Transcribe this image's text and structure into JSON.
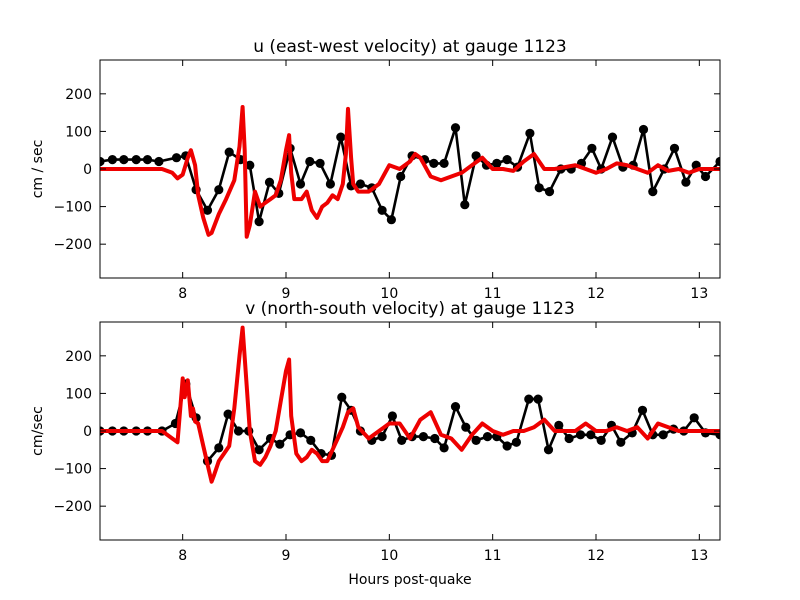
{
  "chart_data": [
    {
      "type": "line",
      "title": "u (east-west velocity) at gauge 1123",
      "xlabel": "",
      "ylabel": "cm / sec",
      "xlim": [
        7.2,
        13.2
      ],
      "ylim": [
        -290,
        290
      ],
      "xticks": [
        8,
        9,
        10,
        11,
        12,
        13
      ],
      "xtick_labels": [
        "8",
        "9",
        "10",
        "11",
        "12",
        "13"
      ],
      "yticks": [
        200,
        100,
        0,
        -100,
        -200
      ],
      "ytick_labels": [
        "200",
        "100",
        "0",
        "−100",
        "−200"
      ],
      "grid": false,
      "colors": {
        "observed": "#000000",
        "model": "#ee0000"
      },
      "series": [
        {
          "style": "black line with circle markers",
          "x": [
            7.2,
            7.32,
            7.43,
            7.55,
            7.66,
            7.77,
            7.94,
            8.03,
            8.13,
            8.24,
            8.35,
            8.45,
            8.56,
            8.65,
            8.74,
            8.84,
            8.93,
            9.04,
            9.14,
            9.23,
            9.33,
            9.43,
            9.53,
            9.63,
            9.72,
            9.83,
            9.93,
            10.02,
            10.11,
            10.22,
            10.34,
            10.43,
            10.53,
            10.64,
            10.73,
            10.84,
            10.94,
            11.04,
            11.14,
            11.24,
            11.36,
            11.45,
            11.55,
            11.66,
            11.76,
            11.86,
            11.96,
            12.05,
            12.16,
            12.26,
            12.36,
            12.46,
            12.55,
            12.66,
            12.76,
            12.87,
            12.97,
            13.06,
            13.2
          ],
          "y": [
            20,
            25,
            25,
            25,
            25,
            20,
            30,
            35,
            -55,
            -110,
            -55,
            45,
            25,
            10,
            -140,
            -35,
            -65,
            55,
            -40,
            20,
            15,
            -40,
            85,
            -45,
            -40,
            -50,
            -110,
            -135,
            -20,
            35,
            25,
            15,
            15,
            110,
            -95,
            35,
            10,
            15,
            25,
            5,
            95,
            -50,
            -60,
            0,
            0,
            15,
            55,
            0,
            85,
            5,
            10,
            105,
            -60,
            0,
            55,
            -35,
            10,
            -20,
            20
          ]
        },
        {
          "style": "thick red line",
          "x": [
            7.2,
            7.8,
            7.9,
            7.95,
            8.0,
            8.05,
            8.08,
            8.12,
            8.15,
            8.2,
            8.25,
            8.28,
            8.35,
            8.42,
            8.5,
            8.55,
            8.58,
            8.6,
            8.62,
            8.65,
            8.7,
            8.75,
            8.8,
            8.85,
            8.9,
            8.95,
            9.0,
            9.03,
            9.05,
            9.08,
            9.15,
            9.2,
            9.25,
            9.3,
            9.35,
            9.4,
            9.45,
            9.5,
            9.55,
            9.58,
            9.6,
            9.63,
            9.65,
            9.7,
            9.75,
            9.8,
            9.9,
            10.0,
            10.1,
            10.2,
            10.25,
            10.3,
            10.4,
            10.5,
            10.6,
            10.7,
            10.8,
            10.9,
            11.0,
            11.1,
            11.2,
            11.3,
            11.4,
            11.5,
            11.6,
            11.7,
            11.8,
            11.9,
            12.0,
            12.1,
            12.2,
            12.3,
            12.4,
            12.5,
            12.6,
            12.7,
            12.8,
            12.9,
            13.0,
            13.2
          ],
          "y": [
            0,
            0,
            -10,
            -25,
            -15,
            30,
            50,
            10,
            -70,
            -130,
            -175,
            -170,
            -120,
            -80,
            -30,
            60,
            165,
            50,
            -180,
            -150,
            -60,
            -100,
            -90,
            -80,
            -70,
            -30,
            50,
            90,
            -10,
            -80,
            -80,
            -60,
            -110,
            -130,
            -100,
            -90,
            -70,
            -80,
            -40,
            40,
            160,
            30,
            -40,
            -60,
            -60,
            -60,
            -40,
            10,
            0,
            20,
            40,
            30,
            -20,
            -30,
            -20,
            -10,
            10,
            30,
            0,
            0,
            -5,
            20,
            40,
            0,
            0,
            5,
            10,
            0,
            -10,
            0,
            15,
            10,
            0,
            -10,
            10,
            -5,
            0,
            -10,
            0,
            0
          ]
        }
      ]
    },
    {
      "type": "line",
      "title": "v (north-south velocity) at gauge 1123",
      "xlabel": "Hours post-quake",
      "ylabel": "cm/sec",
      "xlim": [
        7.2,
        13.2
      ],
      "ylim": [
        -290,
        290
      ],
      "xticks": [
        8,
        9,
        10,
        11,
        12,
        13
      ],
      "xtick_labels": [
        "8",
        "9",
        "10",
        "11",
        "12",
        "13"
      ],
      "yticks": [
        200,
        100,
        0,
        -100,
        -200
      ],
      "ytick_labels": [
        "200",
        "100",
        "0",
        "−100",
        "−200"
      ],
      "grid": false,
      "colors": {
        "observed": "#000000",
        "model": "#ee0000"
      },
      "series": [
        {
          "style": "black line with circle markers",
          "x": [
            7.2,
            7.32,
            7.43,
            7.55,
            7.66,
            7.8,
            7.93,
            8.03,
            8.13,
            8.24,
            8.35,
            8.44,
            8.54,
            8.64,
            8.74,
            8.85,
            8.94,
            9.04,
            9.14,
            9.24,
            9.34,
            9.44,
            9.54,
            9.63,
            9.72,
            9.83,
            9.93,
            10.03,
            10.12,
            10.22,
            10.33,
            10.44,
            10.53,
            10.64,
            10.74,
            10.84,
            10.95,
            11.04,
            11.14,
            11.23,
            11.35,
            11.44,
            11.54,
            11.64,
            11.74,
            11.85,
            11.95,
            12.05,
            12.15,
            12.24,
            12.35,
            12.45,
            12.55,
            12.65,
            12.75,
            12.85,
            12.95,
            13.06,
            13.2
          ],
          "y": [
            0,
            0,
            0,
            0,
            0,
            0,
            20,
            125,
            35,
            -80,
            -45,
            45,
            0,
            0,
            -50,
            -20,
            -35,
            -10,
            -5,
            -25,
            -60,
            -65,
            90,
            55,
            0,
            -25,
            -15,
            40,
            -25,
            -15,
            -15,
            -20,
            -45,
            65,
            10,
            -25,
            -15,
            -15,
            -40,
            -30,
            85,
            85,
            -50,
            15,
            -20,
            -10,
            -10,
            -25,
            15,
            -30,
            -5,
            55,
            -10,
            -10,
            5,
            0,
            35,
            -5,
            -10
          ]
        },
        {
          "style": "thick red line",
          "x": [
            7.2,
            7.8,
            7.9,
            7.95,
            8.0,
            8.02,
            8.05,
            8.08,
            8.1,
            8.12,
            8.15,
            8.2,
            8.25,
            8.28,
            8.3,
            8.35,
            8.4,
            8.45,
            8.5,
            8.55,
            8.58,
            8.62,
            8.65,
            8.7,
            8.75,
            8.8,
            8.85,
            8.9,
            8.95,
            9.0,
            9.03,
            9.05,
            9.1,
            9.15,
            9.2,
            9.25,
            9.3,
            9.35,
            9.4,
            9.45,
            9.5,
            9.55,
            9.6,
            9.65,
            9.7,
            9.8,
            9.9,
            10.0,
            10.1,
            10.2,
            10.3,
            10.4,
            10.5,
            10.6,
            10.7,
            10.8,
            10.9,
            11.0,
            11.1,
            11.2,
            11.3,
            11.4,
            11.5,
            11.6,
            11.7,
            11.8,
            11.9,
            12.0,
            12.1,
            12.2,
            12.3,
            12.4,
            12.5,
            12.6,
            12.7,
            12.8,
            12.9,
            13.0,
            13.2
          ],
          "y": [
            0,
            0,
            -20,
            -30,
            140,
            90,
            135,
            40,
            60,
            25,
            20,
            -40,
            -100,
            -135,
            -120,
            -80,
            -60,
            -40,
            60,
            200,
            275,
            120,
            0,
            -80,
            -90,
            -70,
            -40,
            0,
            80,
            160,
            190,
            40,
            -60,
            -80,
            -70,
            -50,
            -60,
            -80,
            -80,
            -50,
            -20,
            10,
            50,
            60,
            10,
            -20,
            0,
            20,
            20,
            -20,
            30,
            50,
            -10,
            -20,
            -50,
            -10,
            20,
            0,
            -10,
            0,
            0,
            10,
            30,
            0,
            0,
            0,
            20,
            0,
            0,
            10,
            0,
            10,
            -20,
            20,
            10,
            0,
            0,
            0,
            0
          ]
        }
      ]
    }
  ]
}
